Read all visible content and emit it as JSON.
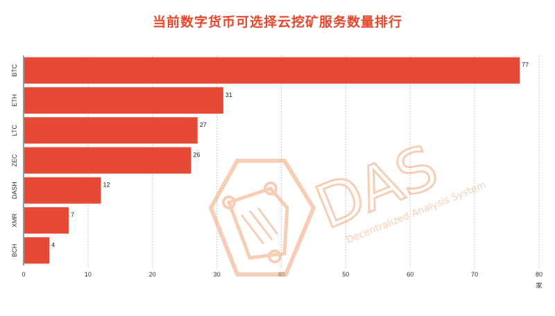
{
  "chart_data": {
    "type": "bar",
    "orientation": "horizontal",
    "title": "当前数字货币可选择云挖矿服务数量排行",
    "categories": [
      "BTC",
      "ETH",
      "LTC",
      "ZEC",
      "DASH",
      "XMR",
      "BCH"
    ],
    "values": [
      77,
      31,
      27,
      26,
      12,
      7,
      4
    ],
    "xlabel": "",
    "ylabel": "",
    "unit": "家",
    "xlim": [
      0,
      80
    ],
    "xticks": [
      0,
      10,
      20,
      30,
      40,
      50,
      60,
      70,
      80
    ],
    "grid": "vertical-dashed",
    "legend": "none",
    "bar_color": "#e64a35",
    "title_color": "#e8472b"
  },
  "watermark": {
    "brand": "DAS",
    "tagline": "Decentralized Analysis System",
    "color": "#f2a77a"
  }
}
